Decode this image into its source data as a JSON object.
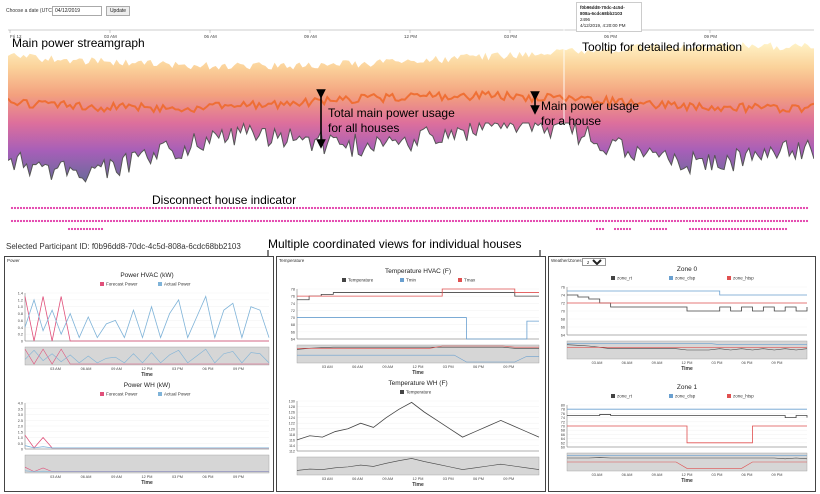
{
  "header": {
    "date_label": "Choose a date (UTC):",
    "date_value": "04/12/2019",
    "update_label": "Update"
  },
  "tooltip": {
    "id_line1": "f0b96dd8-70dc-4c5d-",
    "id_line2": "808a-6cdc68bb2103",
    "value": "2496",
    "time": "4/12/2019, 4:20:00 PM"
  },
  "streamgraph": {
    "x_ticks": [
      "Fri 12",
      "03 AM",
      "06 AM",
      "09 AM",
      "12 PM",
      "03 PM",
      "06 PM",
      "09 PM"
    ]
  },
  "annotations": {
    "main_streamgraph": "Main power streamgraph",
    "tooltip_info": "Tooltip for detailed information",
    "total_usage_line1": "Total main power usage",
    "total_usage_line2": "for all houses",
    "house_usage_line1": "Main power usage",
    "house_usage_line2": "for a house",
    "disconnect": "Disconnect house indicator",
    "coordinated_views": "Multiple coordinated views for individual houses"
  },
  "selected_participant": "Selected Participant ID: f0b96dd8-70dc-4c5d-808a-6cdc68bb2103",
  "panels": {
    "power": {
      "title": "Power"
    },
    "temperature": {
      "title": "Temperature"
    },
    "weather": {
      "title": "Weather/Zones",
      "zone_option": "Zones"
    }
  },
  "colors": {
    "forecast": "#e0507a",
    "actual": "#7fb3d8",
    "temperature": "#444444",
    "tmax": "#e05050",
    "tmin": "#6aa0d0",
    "indicator": "#e23aa8",
    "stream_low": "#2a1a5a",
    "stream_high": "#fff4c8"
  },
  "chart_data": [
    {
      "id": "power_hvac",
      "type": "line",
      "title": "Power HVAC (kW)",
      "xlabel": "Time",
      "x_ticks": [
        "03 AM",
        "06 AM",
        "09 AM",
        "12 PM",
        "03 PM",
        "06 PM",
        "09 PM"
      ],
      "y_ticks": [
        "0",
        "0.2",
        "0.4",
        "0.6",
        "0.8",
        "1.0",
        "1.2",
        "1.4"
      ],
      "ylim": [
        0,
        1.4
      ],
      "series": [
        {
          "name": "Forecast Power",
          "values": [
            1.3,
            0,
            1.3,
            0,
            1.3,
            0,
            0,
            0,
            0,
            0,
            0,
            0,
            0,
            0,
            0,
            0,
            0,
            0,
            0,
            0,
            0,
            0,
            0,
            0,
            0,
            0,
            0,
            0
          ]
        },
        {
          "name": "Actual Power",
          "values": [
            0.4,
            1.2,
            0.3,
            0.9,
            0.2,
            0.8,
            0.1,
            0.7,
            0.1,
            0.5,
            0.6,
            0.1,
            0.9,
            0.1,
            1.0,
            0.1,
            0.8,
            1.2,
            0.1,
            0.7,
            1.3,
            0.1,
            0.9,
            1.1,
            0.1,
            1.0,
            0.9,
            0.1
          ]
        }
      ]
    },
    {
      "id": "power_wh",
      "type": "line",
      "title": "Power WH (kW)",
      "xlabel": "Time",
      "x_ticks": [
        "03 AM",
        "06 AM",
        "09 AM",
        "12 PM",
        "03 PM",
        "06 PM",
        "09 PM"
      ],
      "y_ticks": [
        "0",
        "0.5",
        "1.0",
        "1.5",
        "2.0",
        "2.5",
        "3.0",
        "3.5",
        "4.0"
      ],
      "ylim": [
        0,
        4.0
      ],
      "series": [
        {
          "name": "Forecast Power",
          "values": [
            1.2,
            0.1,
            1.0,
            0.1,
            0.1,
            0.1,
            0.1,
            0.1,
            0.1,
            0.1,
            0.1,
            0.1,
            0.1,
            0.1,
            0.1,
            0.1,
            0.1,
            0.1,
            0.1,
            0.1,
            0.1,
            0.1,
            0.1,
            0.1,
            0.1,
            0.1,
            0.1,
            0.1
          ]
        },
        {
          "name": "Actual Power",
          "values": [
            0.3,
            0.1,
            0.2,
            0.1,
            0.1,
            0.1,
            0.1,
            0.1,
            0.1,
            0.1,
            0.1,
            0.1,
            0.1,
            0.1,
            0.1,
            0.1,
            0.1,
            0.1,
            0.1,
            0.1,
            0.1,
            0.1,
            0.1,
            0.1,
            0.1,
            0.1,
            0.1,
            0.1
          ]
        }
      ]
    },
    {
      "id": "temp_hvac",
      "type": "line",
      "title": "Temperature HVAC (F)",
      "xlabel": "Time",
      "x_ticks": [
        "03 AM",
        "06 AM",
        "09 AM",
        "12 PM",
        "03 PM",
        "06 PM",
        "09 PM"
      ],
      "y_ticks": [
        "64",
        "66",
        "68",
        "70",
        "72",
        "74",
        "76",
        "78"
      ],
      "ylim": [
        64,
        78
      ],
      "series": [
        {
          "name": "Temperature",
          "values": [
            75,
            76,
            76.5,
            77,
            77,
            77,
            77,
            77,
            77,
            77,
            77,
            77,
            77,
            77,
            77,
            77,
            77,
            77,
            76,
            76,
            76
          ]
        },
        {
          "name": "Tmin",
          "values": [
            70,
            70,
            70,
            70,
            70,
            70,
            70,
            70,
            70,
            70,
            70,
            70,
            70,
            70,
            64,
            64,
            64,
            64,
            64,
            69,
            69
          ]
        },
        {
          "name": "Tmax",
          "values": [
            76,
            76,
            76,
            76,
            76,
            76,
            76,
            76,
            76,
            76,
            76,
            76,
            78,
            78,
            78,
            78,
            78,
            78,
            77,
            77,
            77
          ]
        }
      ]
    },
    {
      "id": "temp_wh",
      "type": "line",
      "title": "Temperature WH (F)",
      "xlabel": "Time",
      "x_ticks": [
        "03 AM",
        "06 AM",
        "09 AM",
        "12 PM",
        "03 PM",
        "06 PM",
        "09 PM"
      ],
      "y_ticks": [
        "112",
        "114",
        "116",
        "118",
        "120",
        "122",
        "124",
        "126",
        "128",
        "130"
      ],
      "ylim": [
        112,
        130
      ],
      "series": [
        {
          "name": "Temperature",
          "values": [
            116,
            117.5,
            117,
            119,
            120,
            122,
            120.5,
            124,
            127,
            129.5,
            126,
            123,
            120,
            117,
            119,
            121,
            123,
            121,
            119,
            117
          ]
        }
      ]
    },
    {
      "id": "zone0",
      "type": "line",
      "title": "Zone 0",
      "xlabel": "Time",
      "x_ticks": [
        "03 AM",
        "06 AM",
        "09 AM",
        "12 PM",
        "03 PM",
        "06 PM",
        "09 PM"
      ],
      "y_ticks": [
        "64",
        "66",
        "68",
        "70",
        "72",
        "74",
        "76"
      ],
      "ylim": [
        64,
        76
      ],
      "series": [
        {
          "name": "zone_rt",
          "values": [
            74,
            73.5,
            73,
            72,
            71,
            71,
            71,
            71,
            71,
            71,
            71,
            70,
            70,
            70,
            71,
            70,
            71,
            70,
            71,
            70,
            71,
            70,
            71
          ]
        },
        {
          "name": "zone_clsp",
          "values": [
            75,
            75,
            75,
            75,
            75,
            75,
            75,
            75,
            75,
            75,
            75,
            75,
            75,
            75,
            74,
            74,
            74,
            74,
            74,
            74,
            74,
            74,
            74
          ]
        },
        {
          "name": "zone_htsp",
          "values": [
            72,
            72,
            72,
            72,
            72,
            72,
            72,
            72,
            72,
            72,
            72,
            72,
            72,
            72,
            72,
            72,
            72,
            72,
            72,
            72,
            72,
            72,
            72
          ]
        }
      ]
    },
    {
      "id": "zone1",
      "type": "line",
      "title": "Zone 1",
      "xlabel": "Time",
      "x_ticks": [
        "03 AM",
        "06 AM",
        "09 AM",
        "12 PM",
        "03 PM",
        "06 PM",
        "09 PM"
      ],
      "y_ticks": [
        "60",
        "62",
        "64",
        "66",
        "68",
        "70",
        "72",
        "74",
        "76",
        "78",
        "80"
      ],
      "ylim": [
        60,
        80
      ],
      "series": [
        {
          "name": "zone_rt",
          "values": [
            75,
            75,
            75,
            75.5,
            75,
            75,
            75,
            75,
            75,
            75,
            75,
            75,
            75,
            75,
            75,
            75,
            75,
            75,
            75,
            75,
            74,
            75,
            74
          ]
        },
        {
          "name": "zone_clsp",
          "values": [
            78,
            78,
            78,
            78,
            78,
            78,
            78,
            78,
            78,
            78,
            78,
            78,
            78,
            78,
            78,
            78,
            78,
            78,
            78,
            78,
            78,
            78,
            78
          ]
        },
        {
          "name": "zone_htsp",
          "values": [
            70,
            70,
            70,
            70,
            70,
            70,
            70,
            70,
            70,
            70,
            70,
            62,
            62,
            62,
            62,
            62,
            62,
            70,
            70,
            70,
            70,
            70,
            70
          ]
        }
      ]
    }
  ]
}
